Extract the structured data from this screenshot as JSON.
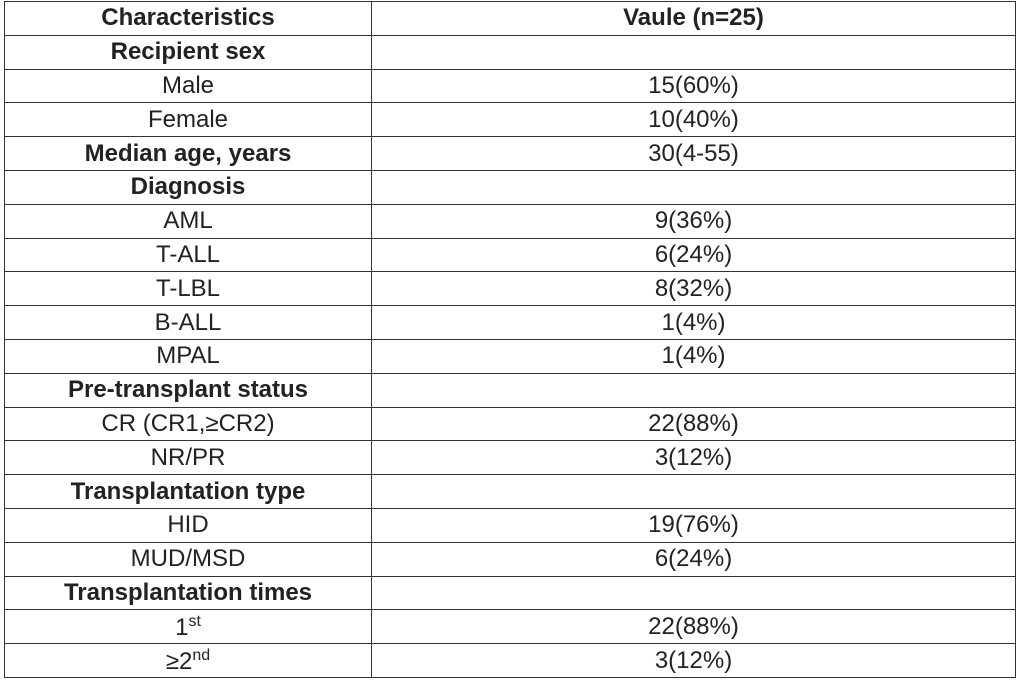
{
  "table": {
    "header": [
      "Characteristics",
      "Vaule (n=25)"
    ],
    "rows": [
      {
        "section": "Recipient sex"
      },
      {
        "label": "Male",
        "value": "15(60%)"
      },
      {
        "label": "Female",
        "value": "10(40%)"
      },
      {
        "label": "Median age, years",
        "value": "30(4-55)",
        "bold": true
      },
      {
        "section": "Diagnosis"
      },
      {
        "label": "AML",
        "value": "9(36%)"
      },
      {
        "label": "T-ALL",
        "value": "6(24%)"
      },
      {
        "label": "T-LBL",
        "value": "8(32%)"
      },
      {
        "label": "B-ALL",
        "value": "1(4%)"
      },
      {
        "label": "MPAL",
        "value": "1(4%)"
      },
      {
        "section": "Pre-transplant status"
      },
      {
        "label": "CR (CR1,≥CR2)",
        "value": "22(88%)"
      },
      {
        "label": "NR/PR",
        "value": "3(12%)"
      },
      {
        "section": "Transplantation type"
      },
      {
        "label": "HID",
        "value": "19(76%)"
      },
      {
        "label": "MUD/MSD",
        "value": "6(24%)"
      },
      {
        "section": "Transplantation times"
      },
      {
        "label": "1",
        "label_sup": "st",
        "value": "22(88%)"
      },
      {
        "label": "≥2",
        "label_sup": "nd",
        "value": "3(12%)"
      }
    ]
  }
}
